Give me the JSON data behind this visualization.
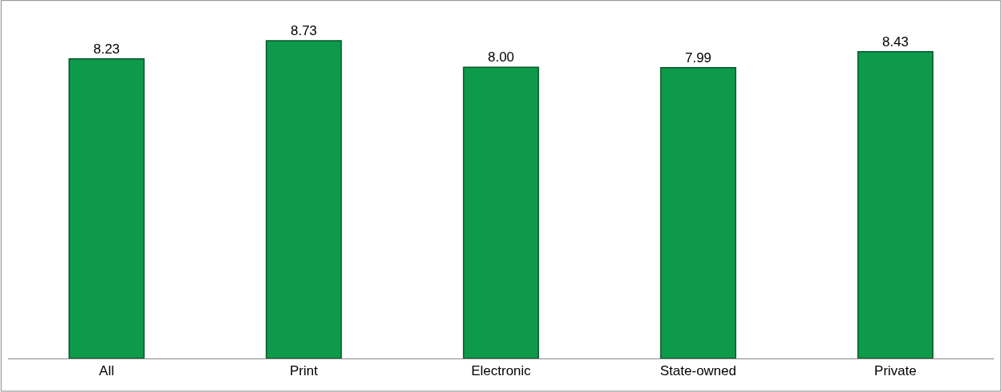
{
  "chart_data": {
    "type": "bar",
    "categories": [
      "All",
      "Print",
      "Electronic",
      "State-owned",
      "Private"
    ],
    "values": [
      8.23,
      8.73,
      8.0,
      7.99,
      8.43
    ],
    "value_labels": [
      "8.23",
      "8.73",
      "8.00",
      "7.99",
      "8.43"
    ],
    "color": "#0e9a4b",
    "grid": false,
    "legend": false
  }
}
